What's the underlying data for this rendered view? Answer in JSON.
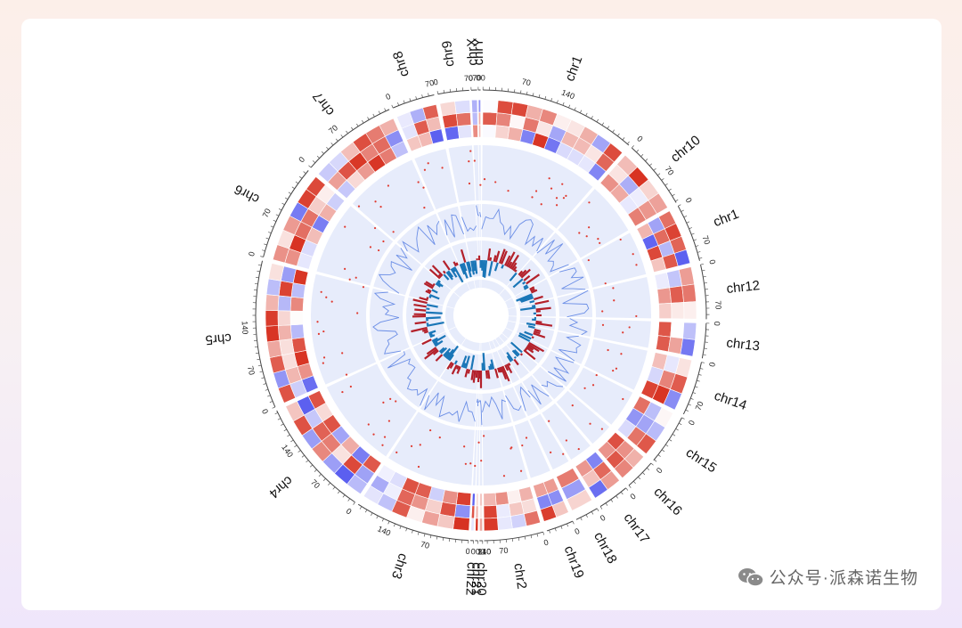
{
  "colors": {
    "track_bg": "#e7ecfb",
    "link_line": "#6b8ee6",
    "scatter": "#e03a2f",
    "bar_up": "#b3202a",
    "bar_down": "#1a76b7",
    "heat_red": "#d7301f",
    "heat_blue": "#5b5ff0"
  },
  "watermark": {
    "text": "公众号·派森诺生物",
    "icon": "wechat-icon"
  },
  "chart_data": {
    "type": "circos",
    "title": "",
    "sectors": [
      {
        "name": "chr1",
        "ticks": [
          "0",
          "70",
          "140"
        ]
      },
      {
        "name": "chr10",
        "ticks": [
          "0",
          "70"
        ]
      },
      {
        "name": "chr1",
        "ticks": [
          "0",
          "70"
        ]
      },
      {
        "name": "chr12",
        "ticks": [
          "0",
          "70"
        ]
      },
      {
        "name": "chr13",
        "ticks": [
          "0"
        ]
      },
      {
        "name": "chr14",
        "ticks": [
          "0",
          "70"
        ]
      },
      {
        "name": "chr15",
        "ticks": [
          "0"
        ]
      },
      {
        "name": "chr16",
        "ticks": [
          "0"
        ]
      },
      {
        "name": "chr17",
        "ticks": [
          "0"
        ]
      },
      {
        "name": "chr18",
        "ticks": [
          "0"
        ]
      },
      {
        "name": "chr19",
        "ticks": [
          "0"
        ]
      },
      {
        "name": "chr2",
        "ticks": [
          "0",
          "70",
          "140",
          "210"
        ]
      },
      {
        "name": "chr20",
        "ticks": [
          "0"
        ]
      },
      {
        "name": "chr21",
        "ticks": [
          "0"
        ]
      },
      {
        "name": "chr22",
        "ticks": [
          "0"
        ]
      },
      {
        "name": "chr3",
        "ticks": [
          "0",
          "70",
          "140"
        ]
      },
      {
        "name": "chr4",
        "ticks": [
          "0",
          "70",
          "140"
        ]
      },
      {
        "name": "chr5",
        "ticks": [
          "0",
          "70",
          "140"
        ]
      },
      {
        "name": "chr6",
        "ticks": [
          "0",
          "70"
        ]
      },
      {
        "name": "chr7",
        "ticks": [
          "0",
          "70"
        ]
      },
      {
        "name": "chr8",
        "ticks": [
          "0",
          "70"
        ]
      },
      {
        "name": "chr9",
        "ticks": [
          "0",
          "70"
        ]
      },
      {
        "name": "chrX",
        "ticks": [
          "0",
          "70"
        ]
      },
      {
        "name": "chrY",
        "ticks": [
          "0"
        ]
      }
    ],
    "tracks": [
      "heatmap",
      "scatter",
      "line",
      "bar"
    ],
    "grid": true,
    "legend": "none"
  }
}
